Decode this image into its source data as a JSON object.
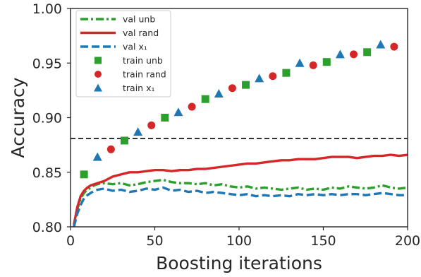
{
  "chart_data": {
    "type": "line",
    "xlabel": "Boosting iterations",
    "ylabel": "Accuracy",
    "xlim": [
      0,
      200
    ],
    "ylim": [
      0.8,
      1.0
    ],
    "xticks": [
      0,
      50,
      100,
      150,
      200
    ],
    "yticks": [
      0.8,
      0.85,
      0.9,
      0.95,
      1.0
    ],
    "ytick_labels": [
      "0.80",
      "0.85",
      "0.90",
      "0.95",
      "1.00"
    ],
    "grid": false,
    "legend_position": "upper-left",
    "reference_line": {
      "y": 0.881,
      "style": "dashed",
      "color": "#000000"
    },
    "series": [
      {
        "name": "val unb",
        "kind": "line",
        "style": "dashdot",
        "color": "#2ca02c",
        "x": [
          2,
          4,
          6,
          8,
          10,
          12,
          14,
          16,
          20,
          25,
          30,
          35,
          40,
          45,
          50,
          55,
          60,
          65,
          70,
          75,
          80,
          85,
          90,
          95,
          100,
          105,
          110,
          115,
          120,
          125,
          130,
          135,
          140,
          145,
          150,
          155,
          160,
          165,
          170,
          175,
          180,
          185,
          190,
          195,
          200
        ],
        "y": [
          0.8,
          0.816,
          0.826,
          0.831,
          0.834,
          0.836,
          0.838,
          0.839,
          0.84,
          0.839,
          0.84,
          0.838,
          0.839,
          0.841,
          0.842,
          0.843,
          0.841,
          0.84,
          0.84,
          0.839,
          0.84,
          0.838,
          0.839,
          0.837,
          0.836,
          0.837,
          0.835,
          0.836,
          0.835,
          0.834,
          0.835,
          0.836,
          0.834,
          0.835,
          0.834,
          0.836,
          0.835,
          0.837,
          0.836,
          0.835,
          0.836,
          0.838,
          0.836,
          0.835,
          0.836
        ]
      },
      {
        "name": "val rand",
        "kind": "line",
        "style": "solid",
        "color": "#d62728",
        "x": [
          2,
          4,
          6,
          8,
          10,
          12,
          14,
          16,
          20,
          25,
          30,
          35,
          40,
          45,
          50,
          55,
          60,
          65,
          70,
          75,
          80,
          85,
          90,
          95,
          100,
          105,
          110,
          115,
          120,
          125,
          130,
          135,
          140,
          145,
          150,
          155,
          160,
          165,
          170,
          175,
          180,
          185,
          190,
          195,
          200
        ],
        "y": [
          0.802,
          0.818,
          0.828,
          0.833,
          0.836,
          0.838,
          0.839,
          0.84,
          0.842,
          0.846,
          0.848,
          0.85,
          0.85,
          0.851,
          0.852,
          0.852,
          0.851,
          0.852,
          0.852,
          0.853,
          0.853,
          0.854,
          0.855,
          0.856,
          0.857,
          0.858,
          0.858,
          0.859,
          0.86,
          0.861,
          0.861,
          0.862,
          0.862,
          0.862,
          0.863,
          0.864,
          0.864,
          0.864,
          0.863,
          0.864,
          0.865,
          0.865,
          0.866,
          0.865,
          0.866
        ]
      },
      {
        "name": "val x₁",
        "kind": "line",
        "style": "dashed",
        "color": "#1f77b4",
        "x": [
          2,
          4,
          6,
          8,
          10,
          12,
          14,
          16,
          20,
          25,
          30,
          35,
          40,
          45,
          50,
          55,
          60,
          65,
          70,
          75,
          80,
          85,
          90,
          95,
          100,
          105,
          110,
          115,
          120,
          125,
          130,
          135,
          140,
          145,
          150,
          155,
          160,
          165,
          170,
          175,
          180,
          185,
          190,
          195,
          200
        ],
        "y": [
          0.8,
          0.812,
          0.82,
          0.826,
          0.829,
          0.831,
          0.833,
          0.834,
          0.835,
          0.833,
          0.834,
          0.832,
          0.833,
          0.835,
          0.834,
          0.836,
          0.833,
          0.834,
          0.832,
          0.833,
          0.831,
          0.832,
          0.831,
          0.83,
          0.829,
          0.83,
          0.828,
          0.829,
          0.828,
          0.829,
          0.828,
          0.83,
          0.829,
          0.83,
          0.829,
          0.83,
          0.829,
          0.83,
          0.83,
          0.829,
          0.83,
          0.831,
          0.83,
          0.829,
          0.829
        ]
      },
      {
        "name": "train unb",
        "kind": "marker",
        "marker": "square",
        "color": "#2ca02c",
        "x": [
          8,
          32,
          56,
          80,
          104,
          128,
          152,
          176
        ],
        "y": [
          0.848,
          0.879,
          0.9,
          0.917,
          0.93,
          0.941,
          0.951,
          0.96
        ]
      },
      {
        "name": "train rand",
        "kind": "marker",
        "marker": "circle",
        "color": "#d62728",
        "x": [
          24,
          48,
          72,
          96,
          120,
          144,
          168,
          192
        ],
        "y": [
          0.871,
          0.893,
          0.91,
          0.927,
          0.938,
          0.948,
          0.958,
          0.965
        ]
      },
      {
        "name": "train x₁",
        "kind": "marker",
        "marker": "triangle",
        "color": "#1f77b4",
        "x": [
          16,
          40,
          64,
          88,
          112,
          136,
          160,
          184
        ],
        "y": [
          0.864,
          0.887,
          0.905,
          0.922,
          0.936,
          0.95,
          0.958,
          0.967
        ]
      }
    ]
  }
}
